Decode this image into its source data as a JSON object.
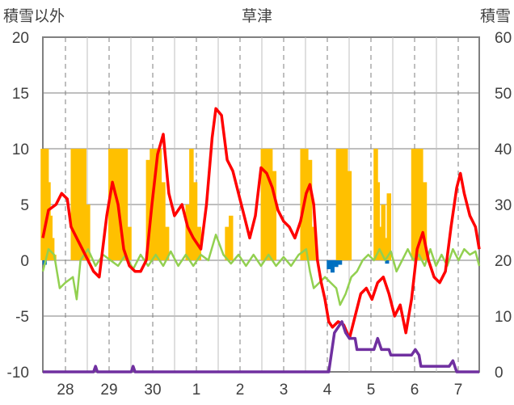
{
  "chart_data": {
    "type": "bar+line",
    "title": "草津",
    "left_axis_label": "積雪以外",
    "right_axis_label": "積雪",
    "left_ylim": [
      -10,
      20
    ],
    "left_ticks": [
      20,
      15,
      10,
      5,
      0,
      -5,
      -10
    ],
    "right_ylim": [
      0,
      60
    ],
    "right_ticks": [
      60,
      50,
      40,
      30,
      20,
      10,
      0
    ],
    "x_day_labels": [
      "28",
      "29",
      "30",
      "1",
      "2",
      "3",
      "4",
      "5",
      "6",
      "7"
    ],
    "grid": true,
    "colors": {
      "temperature": "#ff0000",
      "wind": "#92d050",
      "snow_depth": "#7030a0",
      "sunshine_bar": "#ffc000",
      "precipitation_bar": "#0070c0",
      "grid": "#7f7f7f",
      "frame": "#808080"
    },
    "series": {
      "sunshine_bars": [
        {
          "x": 0.0,
          "v": 10
        },
        {
          "x": 0.05,
          "v": 10
        },
        {
          "x": 0.1,
          "v": 10
        },
        {
          "x": 0.15,
          "v": 7
        },
        {
          "x": 0.2,
          "v": 4
        },
        {
          "x": 0.25,
          "v": 2
        },
        {
          "x": 0.3,
          "v": 0.5
        },
        {
          "x": 0.8,
          "v": 10
        },
        {
          "x": 0.9,
          "v": 10
        },
        {
          "x": 1.0,
          "v": 10
        },
        {
          "x": 1.1,
          "v": 10
        },
        {
          "x": 1.2,
          "v": 5
        },
        {
          "x": 1.8,
          "v": 10
        },
        {
          "x": 1.9,
          "v": 10
        },
        {
          "x": 2.0,
          "v": 10
        },
        {
          "x": 2.1,
          "v": 10
        },
        {
          "x": 2.2,
          "v": 10
        },
        {
          "x": 2.3,
          "v": 3
        },
        {
          "x": 2.8,
          "v": 9
        },
        {
          "x": 2.9,
          "v": 10
        },
        {
          "x": 3.0,
          "v": 10
        },
        {
          "x": 3.1,
          "v": 10
        },
        {
          "x": 3.2,
          "v": 7
        },
        {
          "x": 3.3,
          "v": 3
        },
        {
          "x": 3.85,
          "v": 5
        },
        {
          "x": 3.95,
          "v": 10
        },
        {
          "x": 4.05,
          "v": 7
        },
        {
          "x": 4.15,
          "v": 3
        },
        {
          "x": 4.9,
          "v": 3
        },
        {
          "x": 5.0,
          "v": 4
        },
        {
          "x": 5.85,
          "v": 10
        },
        {
          "x": 5.95,
          "v": 10
        },
        {
          "x": 6.05,
          "v": 10
        },
        {
          "x": 6.15,
          "v": 8
        },
        {
          "x": 6.9,
          "v": 10
        },
        {
          "x": 7.0,
          "v": 10
        },
        {
          "x": 7.1,
          "v": 9
        },
        {
          "x": 7.2,
          "v": 3
        },
        {
          "x": 7.85,
          "v": 10
        },
        {
          "x": 7.95,
          "v": 10
        },
        {
          "x": 8.05,
          "v": 10
        },
        {
          "x": 8.15,
          "v": 8
        },
        {
          "x": 8.85,
          "v": 10
        },
        {
          "x": 8.9,
          "v": 7
        },
        {
          "x": 9.0,
          "v": 3
        },
        {
          "x": 9.05,
          "v": 5
        },
        {
          "x": 9.15,
          "v": 2
        },
        {
          "x": 9.2,
          "v": 6
        },
        {
          "x": 9.85,
          "v": 10
        },
        {
          "x": 9.95,
          "v": 10
        },
        {
          "x": 10.05,
          "v": 10
        },
        {
          "x": 10.15,
          "v": 7
        }
      ],
      "precipitation_bars": [
        {
          "x": 0.05,
          "v": -0.4
        },
        {
          "x": 7.6,
          "v": -0.8
        },
        {
          "x": 7.7,
          "v": -1.1
        },
        {
          "x": 7.8,
          "v": -0.6
        },
        {
          "x": 7.9,
          "v": -0.4
        },
        {
          "x": 9.15,
          "v": -0.3
        }
      ],
      "temperature": [
        {
          "x": 0.0,
          "v": 2
        },
        {
          "x": 0.15,
          "v": 4.5
        },
        {
          "x": 0.35,
          "v": 5
        },
        {
          "x": 0.5,
          "v": 6
        },
        {
          "x": 0.65,
          "v": 5.5
        },
        {
          "x": 0.75,
          "v": 3
        },
        {
          "x": 0.9,
          "v": 2
        },
        {
          "x": 1.05,
          "v": 1
        },
        {
          "x": 1.2,
          "v": 0
        },
        {
          "x": 1.35,
          "v": -1
        },
        {
          "x": 1.5,
          "v": -1.5
        },
        {
          "x": 1.7,
          "v": 4
        },
        {
          "x": 1.85,
          "v": 7
        },
        {
          "x": 2.0,
          "v": 5
        },
        {
          "x": 2.15,
          "v": 1
        },
        {
          "x": 2.3,
          "v": -0.5
        },
        {
          "x": 2.45,
          "v": -1
        },
        {
          "x": 2.6,
          "v": -1
        },
        {
          "x": 2.75,
          "v": 0
        },
        {
          "x": 2.9,
          "v": 5
        },
        {
          "x": 3.05,
          "v": 9.5
        },
        {
          "x": 3.2,
          "v": 11.3
        },
        {
          "x": 3.35,
          "v": 6
        },
        {
          "x": 3.5,
          "v": 4
        },
        {
          "x": 3.7,
          "v": 5
        },
        {
          "x": 3.85,
          "v": 3
        },
        {
          "x": 4.0,
          "v": 2
        },
        {
          "x": 4.2,
          "v": 1
        },
        {
          "x": 4.35,
          "v": 5
        },
        {
          "x": 4.5,
          "v": 11
        },
        {
          "x": 4.6,
          "v": 13.6
        },
        {
          "x": 4.75,
          "v": 13
        },
        {
          "x": 4.9,
          "v": 9
        },
        {
          "x": 5.05,
          "v": 8
        },
        {
          "x": 5.2,
          "v": 6
        },
        {
          "x": 5.35,
          "v": 4
        },
        {
          "x": 5.5,
          "v": 2
        },
        {
          "x": 5.65,
          "v": 4
        },
        {
          "x": 5.8,
          "v": 8.3
        },
        {
          "x": 5.95,
          "v": 7.8
        },
        {
          "x": 6.1,
          "v": 6.5
        },
        {
          "x": 6.25,
          "v": 4.5
        },
        {
          "x": 6.4,
          "v": 3.5
        },
        {
          "x": 6.55,
          "v": 3
        },
        {
          "x": 6.7,
          "v": 2
        },
        {
          "x": 6.85,
          "v": 3.5
        },
        {
          "x": 7.0,
          "v": 6
        },
        {
          "x": 7.1,
          "v": 6.8
        },
        {
          "x": 7.2,
          "v": 5
        },
        {
          "x": 7.3,
          "v": 0
        },
        {
          "x": 7.4,
          "v": -2
        },
        {
          "x": 7.5,
          "v": -3.5
        },
        {
          "x": 7.6,
          "v": -5.5
        },
        {
          "x": 7.7,
          "v": -6
        },
        {
          "x": 7.85,
          "v": -5.5
        },
        {
          "x": 8.0,
          "v": -5.8
        },
        {
          "x": 8.15,
          "v": -7
        },
        {
          "x": 8.3,
          "v": -5
        },
        {
          "x": 8.45,
          "v": -3
        },
        {
          "x": 8.6,
          "v": -2.5
        },
        {
          "x": 8.75,
          "v": -3.5
        },
        {
          "x": 8.9,
          "v": -2
        },
        {
          "x": 9.05,
          "v": -1.5
        },
        {
          "x": 9.2,
          "v": -3
        },
        {
          "x": 9.35,
          "v": -5
        },
        {
          "x": 9.5,
          "v": -4
        },
        {
          "x": 9.65,
          "v": -6.5
        },
        {
          "x": 9.8,
          "v": -3.5
        },
        {
          "x": 9.95,
          "v": 1
        },
        {
          "x": 10.1,
          "v": 2.5
        },
        {
          "x": 10.25,
          "v": 0
        },
        {
          "x": 10.4,
          "v": -1.5
        },
        {
          "x": 10.55,
          "v": -2
        },
        {
          "x": 10.7,
          "v": -1
        },
        {
          "x": 10.85,
          "v": 3
        },
        {
          "x": 11.0,
          "v": 6.5
        },
        {
          "x": 11.1,
          "v": 7.8
        },
        {
          "x": 11.2,
          "v": 6
        },
        {
          "x": 11.35,
          "v": 4
        },
        {
          "x": 11.5,
          "v": 3
        },
        {
          "x": 11.6,
          "v": 1
        }
      ],
      "wind": [
        {
          "x": 0.0,
          "v": -1
        },
        {
          "x": 0.15,
          "v": 1
        },
        {
          "x": 0.3,
          "v": 0.5
        },
        {
          "x": 0.45,
          "v": -2.5
        },
        {
          "x": 0.6,
          "v": -2
        },
        {
          "x": 0.8,
          "v": -1.5
        },
        {
          "x": 0.9,
          "v": -3.5
        },
        {
          "x": 1.0,
          "v": 0
        },
        {
          "x": 1.2,
          "v": 1
        },
        {
          "x": 1.4,
          "v": -0.5
        },
        {
          "x": 1.6,
          "v": 0.5
        },
        {
          "x": 1.8,
          "v": 0
        },
        {
          "x": 2.0,
          "v": -0.5
        },
        {
          "x": 2.2,
          "v": 0.5
        },
        {
          "x": 2.4,
          "v": -0.8
        },
        {
          "x": 2.6,
          "v": 0.5
        },
        {
          "x": 2.8,
          "v": -0.5
        },
        {
          "x": 3.0,
          "v": 0.5
        },
        {
          "x": 3.2,
          "v": -0.5
        },
        {
          "x": 3.4,
          "v": 0.8
        },
        {
          "x": 3.6,
          "v": -0.5
        },
        {
          "x": 3.8,
          "v": 0.5
        },
        {
          "x": 4.0,
          "v": -0.5
        },
        {
          "x": 4.2,
          "v": 0.5
        },
        {
          "x": 4.4,
          "v": 0
        },
        {
          "x": 4.6,
          "v": 2.3
        },
        {
          "x": 4.8,
          "v": 0.5
        },
        {
          "x": 5.0,
          "v": -0.3
        },
        {
          "x": 5.2,
          "v": 0.5
        },
        {
          "x": 5.4,
          "v": -0.5
        },
        {
          "x": 5.6,
          "v": 0.5
        },
        {
          "x": 5.8,
          "v": -0.5
        },
        {
          "x": 6.0,
          "v": 0.5
        },
        {
          "x": 6.2,
          "v": -0.5
        },
        {
          "x": 6.4,
          "v": 0.3
        },
        {
          "x": 6.6,
          "v": -0.5
        },
        {
          "x": 6.8,
          "v": 0.5
        },
        {
          "x": 7.0,
          "v": 1
        },
        {
          "x": 7.1,
          "v": -1
        },
        {
          "x": 7.2,
          "v": -2.5
        },
        {
          "x": 7.35,
          "v": -2
        },
        {
          "x": 7.5,
          "v": -1.5
        },
        {
          "x": 7.65,
          "v": -2
        },
        {
          "x": 7.8,
          "v": -2.5
        },
        {
          "x": 7.9,
          "v": -4
        },
        {
          "x": 8.05,
          "v": -3
        },
        {
          "x": 8.2,
          "v": -1.5
        },
        {
          "x": 8.35,
          "v": -1
        },
        {
          "x": 8.5,
          "v": 0
        },
        {
          "x": 8.65,
          "v": 0.5
        },
        {
          "x": 8.8,
          "v": 0
        },
        {
          "x": 8.95,
          "v": 1
        },
        {
          "x": 9.1,
          "v": 0
        },
        {
          "x": 9.25,
          "v": 0.8
        },
        {
          "x": 9.4,
          "v": -1
        },
        {
          "x": 9.55,
          "v": 0
        },
        {
          "x": 9.7,
          "v": 1
        },
        {
          "x": 9.85,
          "v": 0
        },
        {
          "x": 10.0,
          "v": 0.5
        },
        {
          "x": 10.15,
          "v": -0.5
        },
        {
          "x": 10.3,
          "v": 1
        },
        {
          "x": 10.45,
          "v": -0.5
        },
        {
          "x": 10.6,
          "v": 0.5
        },
        {
          "x": 10.75,
          "v": -0.5
        },
        {
          "x": 10.9,
          "v": 1
        },
        {
          "x": 11.05,
          "v": 0
        },
        {
          "x": 11.2,
          "v": 1
        },
        {
          "x": 11.35,
          "v": 0.5
        },
        {
          "x": 11.5,
          "v": 0.8
        },
        {
          "x": 11.6,
          "v": -0.5
        }
      ],
      "snow_depth": [
        {
          "x": 0.0,
          "v": 0
        },
        {
          "x": 1.35,
          "v": 0
        },
        {
          "x": 1.4,
          "v": 1
        },
        {
          "x": 1.45,
          "v": 0
        },
        {
          "x": 2.35,
          "v": 0
        },
        {
          "x": 2.4,
          "v": 1
        },
        {
          "x": 2.45,
          "v": 0
        },
        {
          "x": 7.6,
          "v": 0
        },
        {
          "x": 7.75,
          "v": 7
        },
        {
          "x": 7.95,
          "v": 9
        },
        {
          "x": 8.05,
          "v": 7
        },
        {
          "x": 8.15,
          "v": 6
        },
        {
          "x": 8.3,
          "v": 6
        },
        {
          "x": 8.35,
          "v": 4
        },
        {
          "x": 8.8,
          "v": 4
        },
        {
          "x": 8.9,
          "v": 6
        },
        {
          "x": 9.0,
          "v": 4
        },
        {
          "x": 9.2,
          "v": 4
        },
        {
          "x": 9.25,
          "v": 3
        },
        {
          "x": 9.8,
          "v": 3
        },
        {
          "x": 9.9,
          "v": 4
        },
        {
          "x": 10.0,
          "v": 3
        },
        {
          "x": 10.05,
          "v": 1
        },
        {
          "x": 10.8,
          "v": 1
        },
        {
          "x": 10.9,
          "v": 2
        },
        {
          "x": 11.0,
          "v": 0
        },
        {
          "x": 11.6,
          "v": 0
        }
      ]
    }
  }
}
